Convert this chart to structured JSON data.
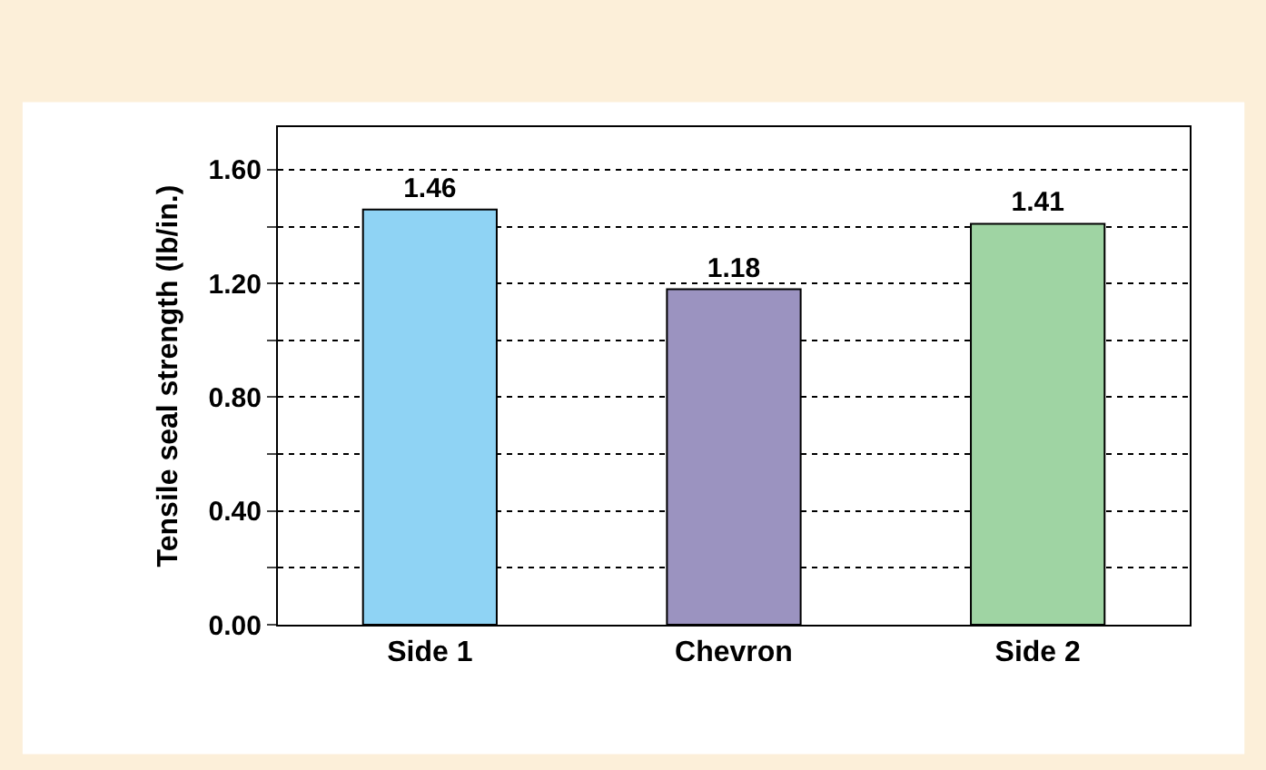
{
  "chart_data": {
    "type": "bar",
    "ylabel": "Tensile seal strength (lb/in.)",
    "categories": [
      "Side 1",
      "Chevron",
      "Side 2"
    ],
    "values": [
      1.46,
      1.18,
      1.41
    ],
    "colors": [
      "#8fd3f4",
      "#9b93c0",
      "#9fd4a3"
    ],
    "ylim": [
      0,
      1.75
    ],
    "yticks": [
      {
        "value": 0,
        "label": "0.00"
      },
      {
        "value": 0.2,
        "label": null
      },
      {
        "value": 0.4,
        "label": "0.40"
      },
      {
        "value": 0.6,
        "label": null
      },
      {
        "value": 0.8,
        "label": "0.80"
      },
      {
        "value": 1.0,
        "label": null
      },
      {
        "value": 1.2,
        "label": "1.20"
      },
      {
        "value": 1.4,
        "label": null
      },
      {
        "value": 1.6,
        "label": "1.60"
      }
    ],
    "grid": "y",
    "data_labels": true,
    "legend": false
  }
}
